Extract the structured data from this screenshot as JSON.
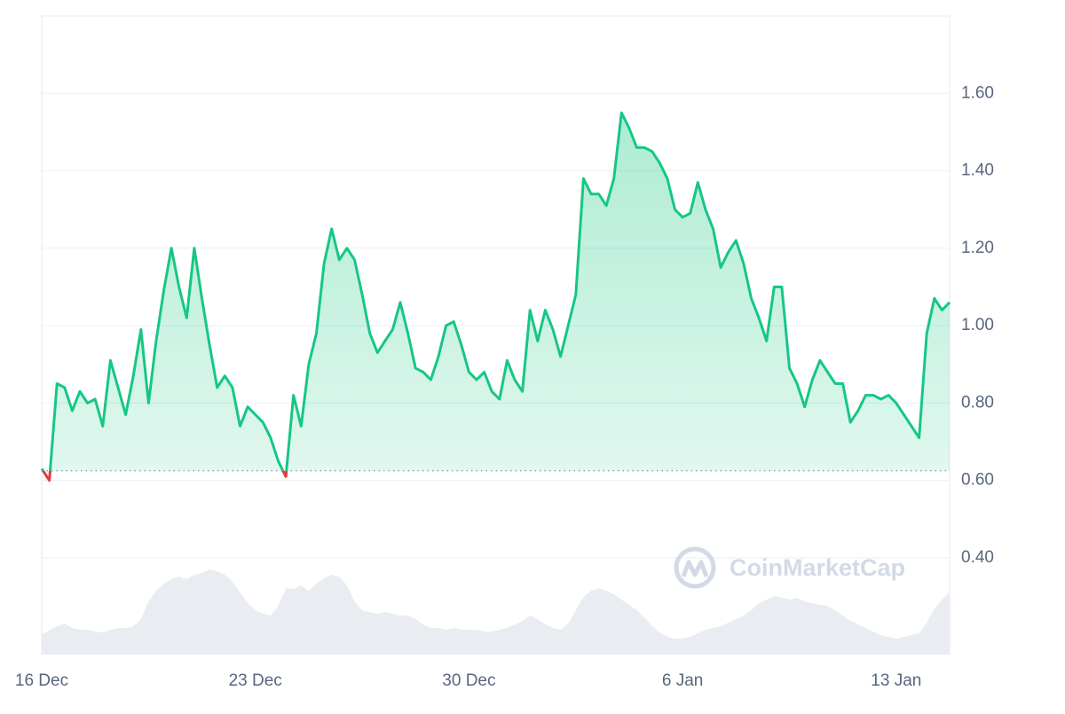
{
  "chart_data": {
    "type": "line",
    "categories": [
      "16 Dec",
      null,
      null,
      null,
      null,
      null,
      null,
      null,
      null,
      null,
      null,
      null,
      null,
      null,
      null,
      null,
      null,
      null,
      null,
      null,
      null,
      null,
      null,
      null,
      null,
      null,
      null,
      null,
      "23 Dec",
      null,
      null,
      null,
      null,
      null,
      null,
      null,
      null,
      null,
      null,
      null,
      null,
      null,
      null,
      null,
      null,
      null,
      null,
      null,
      null,
      null,
      null,
      null,
      null,
      null,
      null,
      null,
      "30 Dec",
      null,
      null,
      null,
      null,
      null,
      null,
      null,
      null,
      null,
      null,
      null,
      null,
      null,
      null,
      null,
      null,
      null,
      null,
      null,
      null,
      null,
      null,
      null,
      null,
      null,
      null,
      null,
      "6 Jan",
      null,
      null,
      null,
      null,
      null,
      null,
      null,
      null,
      null,
      null,
      null,
      null,
      null,
      null,
      null,
      null,
      null,
      null,
      null,
      null,
      null,
      null,
      null,
      null,
      null,
      null,
      null,
      "13 Jan",
      null,
      null,
      null,
      null,
      null,
      null,
      null
    ],
    "series": [
      {
        "color": "#16c784",
        "below_color": "#ea3943",
        "values": [
          0.63,
          0.6,
          0.85,
          0.84,
          0.78,
          0.83,
          0.8,
          0.81,
          0.74,
          0.91,
          0.84,
          0.77,
          0.87,
          0.99,
          0.8,
          0.96,
          1.09,
          1.2,
          1.1,
          1.02,
          1.2,
          1.07,
          0.95,
          0.84,
          0.87,
          0.84,
          0.74,
          0.79,
          0.77,
          0.75,
          0.71,
          0.65,
          0.61,
          0.82,
          0.74,
          0.9,
          0.98,
          1.16,
          1.25,
          1.17,
          1.2,
          1.17,
          1.08,
          0.98,
          0.93,
          0.96,
          0.99,
          1.06,
          0.98,
          0.89,
          0.88,
          0.86,
          0.92,
          1.0,
          1.01,
          0.95,
          0.88,
          0.86,
          0.88,
          0.83,
          0.81,
          0.91,
          0.86,
          0.83,
          1.04,
          0.96,
          1.04,
          0.99,
          0.92,
          1.0,
          1.08,
          1.38,
          1.34,
          1.34,
          1.31,
          1.38,
          1.55,
          1.51,
          1.46,
          1.46,
          1.45,
          1.42,
          1.38,
          1.3,
          1.28,
          1.29,
          1.37,
          1.3,
          1.25,
          1.15,
          1.19,
          1.22,
          1.16,
          1.07,
          1.02,
          0.96,
          1.1,
          1.1,
          0.89,
          0.85,
          0.79,
          0.86,
          0.91,
          0.88,
          0.85,
          0.85,
          0.75,
          0.78,
          0.82,
          0.82,
          0.81,
          0.82,
          0.8,
          0.77,
          0.74,
          0.71,
          0.98,
          1.07,
          1.04,
          1.06
        ]
      },
      {
        "color": "#e9edf2",
        "axis": "y2",
        "type": "area",
        "values": [
          22,
          28,
          32,
          35,
          30,
          28,
          28,
          26,
          25,
          28,
          30,
          30,
          32,
          40,
          60,
          72,
          80,
          85,
          88,
          85,
          90,
          92,
          96,
          94,
          90,
          82,
          70,
          58,
          50,
          46,
          44,
          55,
          75,
          74,
          78,
          72,
          80,
          86,
          90,
          88,
          78,
          60,
          50,
          48,
          46,
          48,
          46,
          44,
          44,
          40,
          34,
          30,
          30,
          28,
          30,
          28,
          28,
          28,
          26,
          26,
          28,
          30,
          34,
          38,
          44,
          40,
          34,
          30,
          28,
          35,
          50,
          65,
          72,
          75,
          72,
          68,
          62,
          56,
          50,
          42,
          32,
          25,
          20,
          18,
          18,
          20,
          24,
          28,
          30,
          32,
          36,
          40,
          44,
          50,
          58,
          62,
          66,
          64,
          62,
          64,
          60,
          58,
          56,
          55,
          50,
          44,
          38,
          34,
          30,
          26,
          22,
          20,
          18,
          20,
          22,
          24,
          36,
          52,
          62,
          70
        ]
      }
    ],
    "ylim": [
      0.15,
      1.8
    ],
    "yticks": [
      {
        "value": 0.4,
        "label": "0.40"
      },
      {
        "value": 0.6,
        "label": "0.60"
      },
      {
        "value": 0.8,
        "label": "0.80"
      },
      {
        "value": 1.0,
        "label": "1.00"
      },
      {
        "value": 1.2,
        "label": "1.20"
      },
      {
        "value": 1.4,
        "label": "1.40"
      },
      {
        "value": 1.6,
        "label": "1.60"
      }
    ],
    "y2lim": [
      0,
      720
    ],
    "reference_line": 0.625,
    "grid": true,
    "watermark": "CoinMarketCap"
  }
}
